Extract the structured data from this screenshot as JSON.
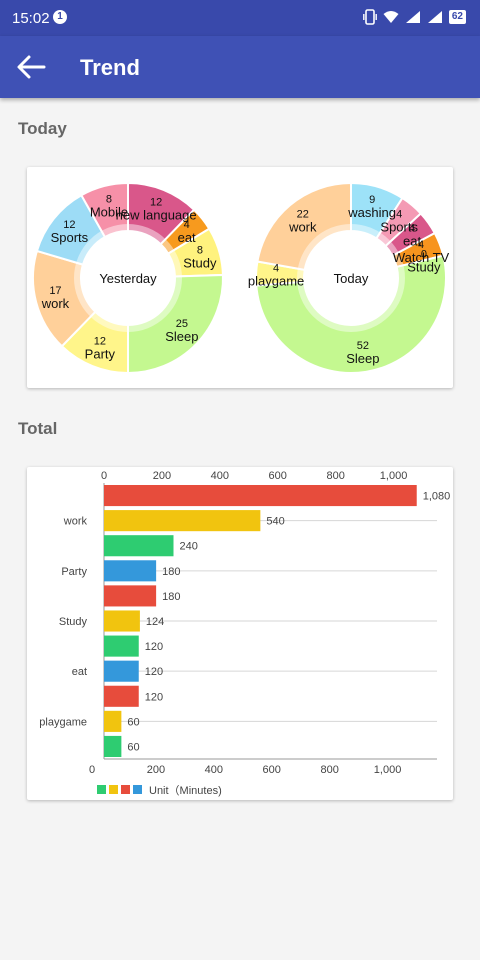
{
  "status_bar": {
    "time": "15:02",
    "notification_count": "1",
    "battery": "62"
  },
  "app_bar": {
    "title": "Trend",
    "back_icon": "arrow-back-icon"
  },
  "sections": {
    "today": "Today",
    "total": "Total"
  },
  "chart_data": [
    {
      "type": "pie",
      "center_label": "Yesterday",
      "slices": [
        {
          "label": "new language",
          "value": 12,
          "color": "#d9578a"
        },
        {
          "label": "eat",
          "value": 4,
          "color": "#f79a1e"
        },
        {
          "label": "Study",
          "value": 8,
          "color": "#fff27e"
        },
        {
          "label": "Sleep",
          "value": 25,
          "color": "#c4f890"
        },
        {
          "label": "Party",
          "value": 12,
          "color": "#fff58a"
        },
        {
          "label": "work",
          "value": 17,
          "color": "#ffd09a"
        },
        {
          "label": "Sports",
          "value": 12,
          "color": "#9ddcf6"
        },
        {
          "label": "Mobile",
          "value": 8,
          "color": "#f690a8"
        }
      ]
    },
    {
      "type": "pie",
      "center_label": "Today",
      "slices": [
        {
          "label": "washing",
          "value": 9,
          "color": "#9de2f8"
        },
        {
          "label": "Sports",
          "value": 4,
          "color": "#f49ab4"
        },
        {
          "label": "eat",
          "value": 4,
          "color": "#d9578a"
        },
        {
          "label": "Watch TV",
          "value": 4,
          "color": "#f7941e"
        },
        {
          "label": "Study",
          "value": 0,
          "color": "#fff27e"
        },
        {
          "label": "Sleep",
          "value": 52,
          "color": "#c4f890"
        },
        {
          "label": "playgame",
          "value": 4,
          "color": "#fff58a"
        },
        {
          "label": "work",
          "value": 22,
          "color": "#ffd09a"
        }
      ]
    },
    {
      "type": "bar",
      "orientation": "horizontal",
      "categories": [
        "",
        "work",
        "",
        "Party",
        "",
        "Study",
        "",
        "eat",
        "",
        "playgame",
        ""
      ],
      "values": [
        1080,
        540,
        240,
        180,
        180,
        124,
        120,
        120,
        120,
        60,
        60
      ],
      "value_labels": [
        "1,080",
        "540",
        "240",
        "180",
        "180",
        "124",
        "120",
        "120",
        "120",
        "60",
        "60"
      ],
      "colors": [
        "#e74c3c",
        "#f1c40f",
        "#2ecc71",
        "#3498db",
        "#e74c3c",
        "#f1c40f",
        "#2ecc71",
        "#3498db",
        "#e74c3c",
        "#f1c40f",
        "#2ecc71"
      ],
      "xlim": [
        0,
        1150
      ],
      "ticks": [
        0,
        200,
        400,
        600,
        800,
        1000
      ],
      "tick_labels": [
        "0",
        "200",
        "400",
        "600",
        "800",
        "1,000"
      ],
      "grid": true,
      "legend": {
        "colors": [
          "#2ecc71",
          "#f1c40f",
          "#e74c3c",
          "#3498db"
        ],
        "label": "Unit（Minutes)",
        "placement": "bottom-left"
      }
    }
  ]
}
